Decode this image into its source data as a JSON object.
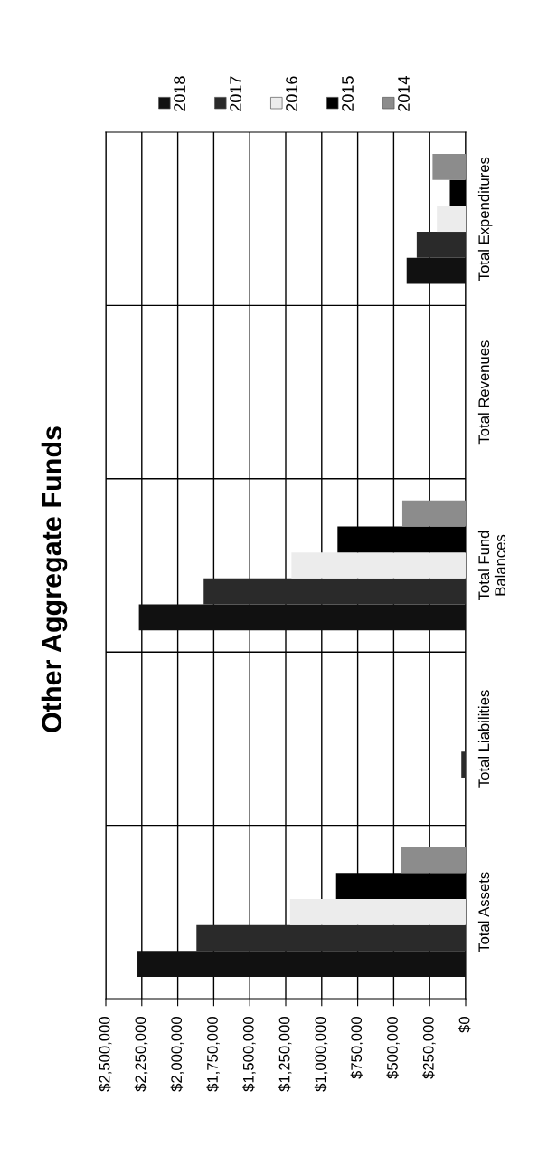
{
  "chart_data": {
    "type": "bar",
    "orientation": "horizontal",
    "title": "Other Aggregate Funds",
    "categories": [
      "Total Expenditures",
      "Total Revenues",
      "Total Fund\nBalances",
      "Total Liabilities",
      "Total Assets"
    ],
    "series": [
      {
        "name": "2018",
        "color": "#111111",
        "values": [
          410000,
          0,
          2270000,
          0,
          2280000
        ]
      },
      {
        "name": "2017",
        "color": "#2a2a2a",
        "values": [
          340000,
          0,
          1820000,
          30000,
          1870000
        ]
      },
      {
        "name": "2016",
        "color": "#ececec",
        "values": [
          200000,
          0,
          1210000,
          0,
          1220000
        ]
      },
      {
        "name": "2015",
        "color": "#000000",
        "values": [
          110000,
          0,
          890000,
          0,
          900000
        ]
      },
      {
        "name": "2014",
        "color": "#8c8c8c",
        "values": [
          230000,
          0,
          440000,
          0,
          450000
        ]
      }
    ],
    "xlim": [
      2500000,
      0
    ],
    "xticks": [
      {
        "value": 2500000,
        "label": "$2,500,000"
      },
      {
        "value": 2250000,
        "label": "$2,250,000"
      },
      {
        "value": 2000000,
        "label": "$2,000,000"
      },
      {
        "value": 1750000,
        "label": "$1,750,000"
      },
      {
        "value": 1500000,
        "label": "$1,500,000"
      },
      {
        "value": 1250000,
        "label": "$1,250,000"
      },
      {
        "value": 1000000,
        "label": "$1,000,000"
      },
      {
        "value": 750000,
        "label": "$750,000"
      },
      {
        "value": 500000,
        "label": "$500,000"
      },
      {
        "value": 250000,
        "label": "$250,000"
      },
      {
        "value": 0,
        "label": "$0"
      }
    ],
    "grid": true,
    "legend": "top"
  }
}
